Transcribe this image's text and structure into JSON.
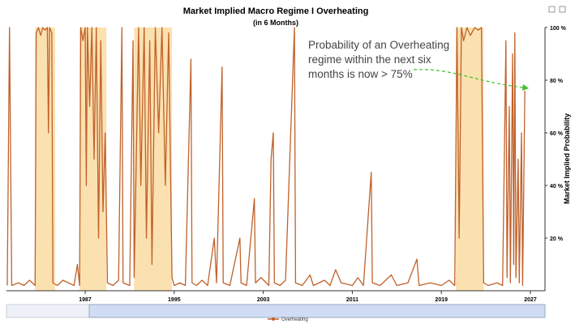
{
  "chart_data": {
    "type": "line",
    "title": "Market Implied Macro Regime I Overheating",
    "subtitle": "(in 6 Months)",
    "y_axis_label": "Market Implied Probability",
    "annotation": [
      "Probability of an Overheating",
      "regime within the next six",
      "months is now > 75%"
    ],
    "xlim": [
      1979.93,
      2028.31
    ],
    "xticks": [
      1987,
      1995,
      2003,
      2011,
      2019,
      2027
    ],
    "ylim": [
      0,
      100
    ],
    "yticks": [
      {
        "value": 20,
        "label": "20 %"
      },
      {
        "value": 40,
        "label": "40 %"
      },
      {
        "value": 60,
        "label": "60 %"
      },
      {
        "value": 80,
        "label": "80 %"
      },
      {
        "value": 100,
        "label": "100 %"
      }
    ],
    "y_axis_side": "right",
    "shaded_color": "#fbe1b0",
    "shaded_periods": [
      [
        1982.5,
        1984.3
      ],
      [
        1986.5,
        1988.9
      ],
      [
        1991.4,
        1994.8
      ],
      [
        2020.3,
        2022.8
      ]
    ],
    "x": [
      1980.0,
      1980.2,
      1980.4,
      1981.0,
      1981.5,
      1982.0,
      1982.5,
      1982.6,
      1982.8,
      1983.0,
      1983.2,
      1983.4,
      1983.6,
      1983.7,
      1983.8,
      1984.0,
      1984.1,
      1984.5,
      1985.0,
      1985.5,
      1986.0,
      1986.3,
      1986.5,
      1986.6,
      1986.8,
      1987.0,
      1987.1,
      1987.2,
      1987.4,
      1987.6,
      1987.8,
      1988.0,
      1988.2,
      1988.4,
      1988.6,
      1988.8,
      1989.0,
      1989.5,
      1990.0,
      1990.3,
      1990.4,
      1991.0,
      1991.3,
      1991.4,
      1991.8,
      1992.0,
      1992.3,
      1992.5,
      1992.8,
      1993.0,
      1993.3,
      1993.6,
      1993.9,
      1994.2,
      1994.5,
      1994.8,
      1995.0,
      1995.5,
      1996.0,
      1996.5,
      1996.6,
      1997.0,
      1997.5,
      1998.0,
      1998.6,
      1998.8,
      1999.3,
      1999.4,
      2000.0,
      2000.9,
      2001.0,
      2001.5,
      2002.2,
      2002.3,
      2002.8,
      2003.5,
      2003.7,
      2003.9,
      2004.0,
      2004.5,
      2005.0,
      2005.8,
      2005.9,
      2006.5,
      2007.2,
      2007.5,
      2008.5,
      2009.0,
      2009.5,
      2010.0,
      2011.0,
      2011.5,
      2012.0,
      2012.7,
      2012.8,
      2013.5,
      2014.5,
      2015.0,
      2016.0,
      2016.8,
      2017.0,
      2018.0,
      2019.0,
      2019.7,
      2020.2,
      2020.4,
      2020.6,
      2020.8,
      2021.0,
      2021.3,
      2021.6,
      2022.0,
      2022.3,
      2022.6,
      2022.8,
      2023.2,
      2024.0,
      2024.5,
      2024.8,
      2024.9,
      2025.1,
      2025.2,
      2025.4,
      2025.5,
      2025.6,
      2025.7,
      2025.9,
      2026.0,
      2026.2,
      2026.3,
      2026.5
    ],
    "series": [
      {
        "name": "Overheating",
        "color": "#c0612b",
        "values": [
          2,
          100,
          2,
          3,
          2,
          4,
          2,
          98,
          100,
          97,
          100,
          99,
          100,
          60,
          100,
          98,
          3,
          2,
          4,
          3,
          2,
          10,
          2,
          100,
          95,
          100,
          40,
          100,
          70,
          100,
          50,
          100,
          20,
          95,
          30,
          60,
          3,
          2,
          4,
          100,
          3,
          2,
          95,
          5,
          100,
          40,
          100,
          20,
          95,
          10,
          100,
          60,
          100,
          40,
          98,
          5,
          2,
          3,
          2,
          88,
          3,
          2,
          4,
          2,
          20,
          3,
          85,
          3,
          2,
          20,
          3,
          2,
          35,
          3,
          5,
          2,
          50,
          60,
          3,
          2,
          4,
          100,
          3,
          2,
          6,
          2,
          4,
          2,
          8,
          3,
          2,
          5,
          2,
          45,
          3,
          2,
          6,
          2,
          3,
          12,
          2,
          3,
          2,
          4,
          2,
          100,
          20,
          100,
          95,
          100,
          97,
          100,
          99,
          100,
          3,
          2,
          3,
          2,
          95,
          5,
          70,
          3,
          90,
          10,
          98,
          5,
          50,
          3,
          60,
          2,
          76
        ]
      }
    ]
  }
}
